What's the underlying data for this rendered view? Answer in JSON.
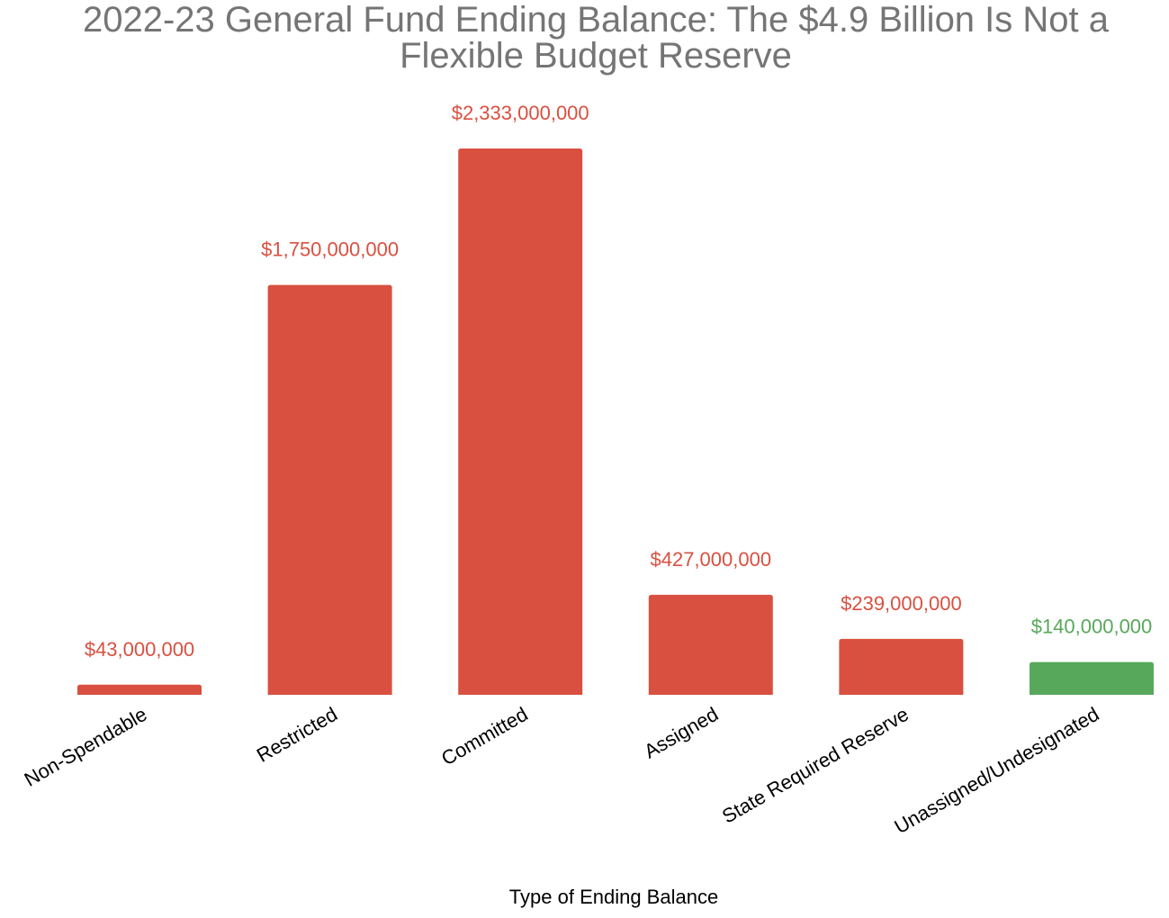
{
  "chart_data": {
    "type": "bar",
    "title": "2022-23 General Fund Ending Balance: The $4.9 Billion Is Not a Flexible Budget Reserve",
    "xlabel": "Type of Ending Balance",
    "ylabel": "",
    "categories": [
      "Non-Spendable",
      "Restricted",
      "Committed",
      "Assigned",
      "State Required Reserve",
      "Unassigned/Undesignated"
    ],
    "values": [
      43000000,
      1750000000,
      2333000000,
      427000000,
      239000000,
      140000000
    ],
    "value_labels": [
      "$43,000,000",
      "$1,750,000,000",
      "$2,333,000,000",
      "$427,000,000",
      "$239,000,000",
      "$140,000,000"
    ],
    "bar_colors": [
      "#d95040",
      "#d95040",
      "#d95040",
      "#d95040",
      "#d95040",
      "#57a85a"
    ],
    "ylim": [
      0,
      2333000000
    ],
    "grid": false,
    "legend": "none"
  }
}
